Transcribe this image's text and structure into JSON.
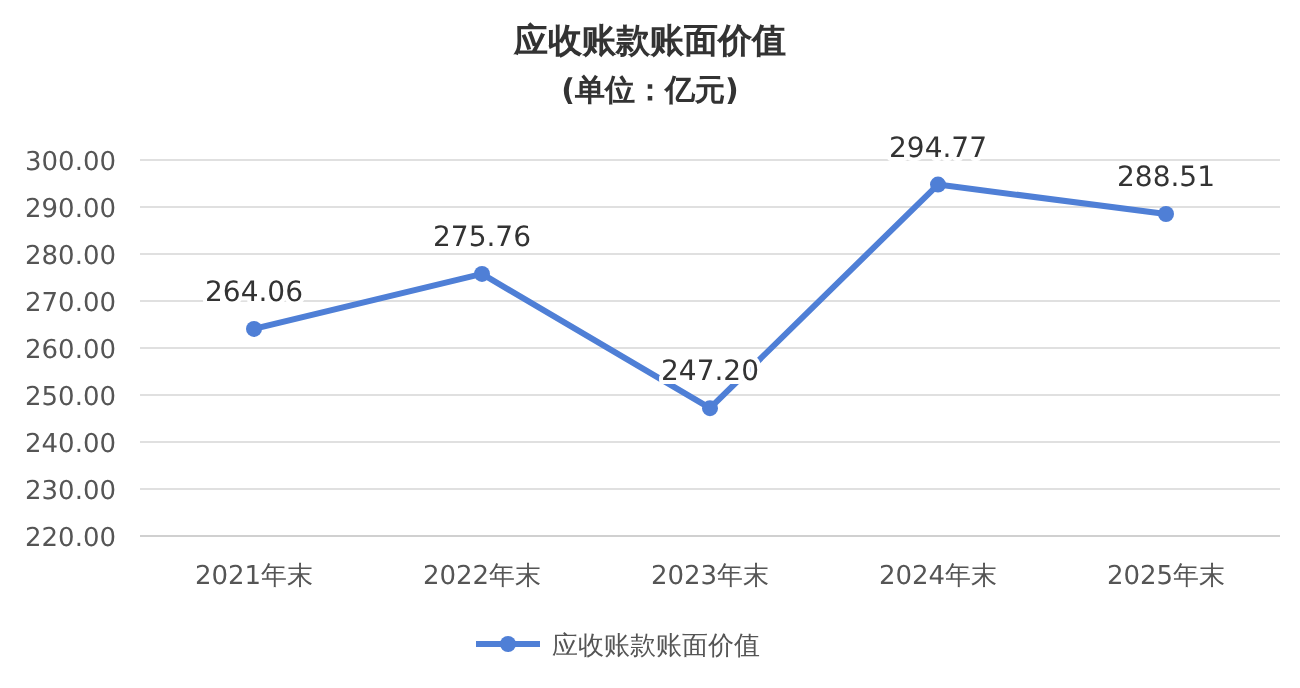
{
  "chart_data": {
    "type": "line",
    "title": "应收账款账面价值",
    "subtitle": "(单位：亿元)",
    "categories": [
      "2021年末",
      "2022年末",
      "2023年末",
      "2024年末",
      "2025年末"
    ],
    "series": [
      {
        "name": "应收账款账面价值",
        "color": "#4f7fd6",
        "values": [
          264.06,
          275.76,
          247.2,
          294.77,
          288.51
        ],
        "value_labels": [
          "264.06",
          "275.76",
          "247.20",
          "294.77",
          "288.51"
        ]
      }
    ],
    "ylim": [
      220,
      300
    ],
    "yticks": [
      {
        "value": 220,
        "label": "220.00"
      },
      {
        "value": 230,
        "label": "230.00"
      },
      {
        "value": 240,
        "label": "240.00"
      },
      {
        "value": 250,
        "label": "250.00"
      },
      {
        "value": 260,
        "label": "260.00"
      },
      {
        "value": 270,
        "label": "270.00"
      },
      {
        "value": 280,
        "label": "280.00"
      },
      {
        "value": 290,
        "label": "290.00"
      },
      {
        "value": 300,
        "label": "300.00"
      }
    ],
    "grid": "y",
    "legend": "bottom",
    "marker": "circle"
  }
}
